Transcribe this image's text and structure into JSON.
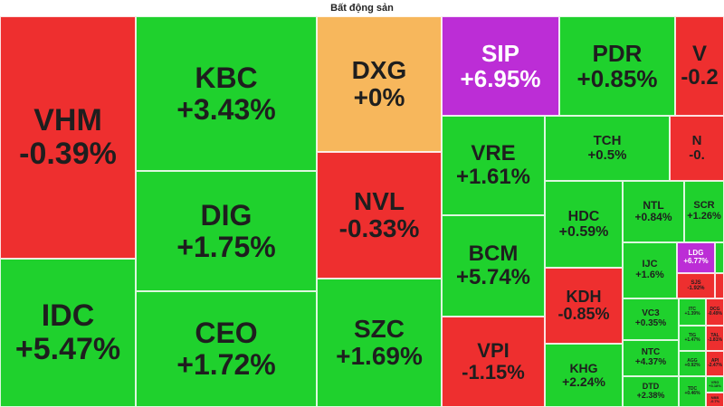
{
  "title": "Bất động sản",
  "colors": {
    "up": "#1fd12d",
    "down": "#ee2f2f",
    "flat": "#f7b75c",
    "ceiling": "#bc2dd6"
  },
  "chart_data": {
    "type": "treemap",
    "tiles": [
      {
        "symbol": "VHM",
        "change": "-0.39%",
        "value": -0.39,
        "status": "down"
      },
      {
        "symbol": "IDC",
        "change": "+5.47%",
        "value": 5.47,
        "status": "up"
      },
      {
        "symbol": "KBC",
        "change": "+3.43%",
        "value": 3.43,
        "status": "up"
      },
      {
        "symbol": "DIG",
        "change": "+1.75%",
        "value": 1.75,
        "status": "up"
      },
      {
        "symbol": "CEO",
        "change": "+1.72%",
        "value": 1.72,
        "status": "up"
      },
      {
        "symbol": "DXG",
        "change": "+0%",
        "value": 0,
        "status": "flat"
      },
      {
        "symbol": "NVL",
        "change": "-0.33%",
        "value": -0.33,
        "status": "down"
      },
      {
        "symbol": "SZC",
        "change": "+1.69%",
        "value": 1.69,
        "status": "up"
      },
      {
        "symbol": "SIP",
        "change": "+6.95%",
        "value": 6.95,
        "status": "ceiling"
      },
      {
        "symbol": "PDR",
        "change": "+0.85%",
        "value": 0.85,
        "status": "up"
      },
      {
        "symbol": "V",
        "change": "-0.2",
        "value": -0.2,
        "status": "down"
      },
      {
        "symbol": "VRE",
        "change": "+1.61%",
        "value": 1.61,
        "status": "up"
      },
      {
        "symbol": "TCH",
        "change": "+0.5%",
        "value": 0.5,
        "status": "up"
      },
      {
        "symbol": "N",
        "change": "-0.",
        "value": -0.1,
        "status": "down"
      },
      {
        "symbol": "BCM",
        "change": "+5.74%",
        "value": 5.74,
        "status": "up"
      },
      {
        "symbol": "VPI",
        "change": "-1.15%",
        "value": -1.15,
        "status": "down"
      },
      {
        "symbol": "HDC",
        "change": "+0.59%",
        "value": 0.59,
        "status": "up"
      },
      {
        "symbol": "NTL",
        "change": "+0.84%",
        "value": 0.84,
        "status": "up"
      },
      {
        "symbol": "SCR",
        "change": "+1.26%",
        "value": 1.26,
        "status": "up"
      },
      {
        "symbol": "IJC",
        "change": "+1.6%",
        "value": 1.6,
        "status": "up"
      },
      {
        "symbol": "LDG",
        "change": "+6.77%",
        "value": 6.77,
        "status": "ceiling"
      },
      {
        "symbol": "",
        "change": "",
        "value": 0.3,
        "status": "up"
      },
      {
        "symbol": "KDH",
        "change": "-0.85%",
        "value": -0.85,
        "status": "down"
      },
      {
        "symbol": "SJS",
        "change": "-1.92%",
        "value": -1.92,
        "status": "down"
      },
      {
        "symbol": "",
        "change": "",
        "value": -0.5,
        "status": "down"
      },
      {
        "symbol": "VC3",
        "change": "+0.35%",
        "value": 0.35,
        "status": "up"
      },
      {
        "symbol": "ITC",
        "change": "+1.39%",
        "value": 1.39,
        "status": "up"
      },
      {
        "symbol": "DCG",
        "change": "-0.49%",
        "value": -0.49,
        "status": "down"
      },
      {
        "symbol": "TIG",
        "change": "+1.47%",
        "value": 1.47,
        "status": "up"
      },
      {
        "symbol": "TAL",
        "change": "-1.81%",
        "value": -1.81,
        "status": "down"
      },
      {
        "symbol": "NTC",
        "change": "+4.37%",
        "value": 4.37,
        "status": "up"
      },
      {
        "symbol": "AGG",
        "change": "+0.92%",
        "value": 0.92,
        "status": "up"
      },
      {
        "symbol": "API",
        "change": "-2.47%",
        "value": -2.47,
        "status": "down"
      },
      {
        "symbol": "KHG",
        "change": "+2.24%",
        "value": 2.24,
        "status": "up"
      },
      {
        "symbol": "DTD",
        "change": "+2.38%",
        "value": 2.38,
        "status": "up"
      },
      {
        "symbol": "TDC",
        "change": "+0.46%",
        "value": 0.46,
        "status": "up"
      },
      {
        "symbol": "VRG",
        "change": "+3.18%",
        "value": 3.18,
        "status": "up"
      },
      {
        "symbol": "NBB",
        "change": "-0.7%",
        "value": -0.7,
        "status": "down"
      }
    ]
  }
}
